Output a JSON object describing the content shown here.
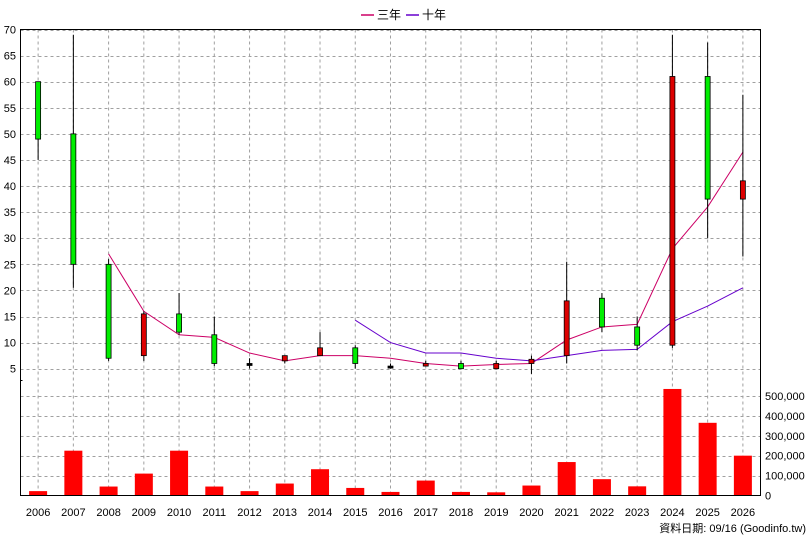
{
  "chart_data": {
    "type": "candlestick",
    "categories": [
      "2006",
      "2007",
      "2008",
      "2009",
      "2010",
      "2011",
      "2012",
      "2013",
      "2014",
      "2015",
      "2016",
      "2017",
      "2018",
      "2019",
      "2020",
      "2021",
      "2022",
      "2023",
      "2024",
      "2025",
      "2026"
    ],
    "price_axis": {
      "ylim": [
        0,
        70
      ],
      "ticks": [
        5,
        10,
        15,
        20,
        25,
        30,
        35,
        40,
        45,
        50,
        55,
        60,
        65,
        70
      ]
    },
    "volume_axis": {
      "ylim": [
        0,
        580000
      ],
      "ticks": [
        0,
        100000,
        200000,
        300000,
        400000,
        500000
      ],
      "tick_labels": [
        "0",
        "100,000",
        "200,000",
        "300,000",
        "400,000",
        "500,000"
      ]
    },
    "candles": [
      {
        "open": 49,
        "close": 60,
        "high": 60,
        "low": 45,
        "color": "green"
      },
      {
        "open": 25,
        "close": 50,
        "high": 69,
        "low": 20.5,
        "color": "green"
      },
      {
        "open": 7,
        "close": 25,
        "high": 26,
        "low": 6.5,
        "color": "green"
      },
      {
        "open": 15.5,
        "close": 7.5,
        "high": 16,
        "low": 6.5,
        "color": "red"
      },
      {
        "open": 12,
        "close": 15.5,
        "high": 19.5,
        "low": 11.5,
        "color": "green"
      },
      {
        "open": 6,
        "close": 11.5,
        "high": 15,
        "low": 5.5,
        "color": "green"
      },
      {
        "open": 6,
        "close": 6,
        "high": 7,
        "low": 5,
        "color": "black"
      },
      {
        "open": 7.5,
        "close": 6.5,
        "high": 7.5,
        "low": 6,
        "color": "red"
      },
      {
        "open": 9,
        "close": 7.5,
        "high": 12,
        "low": 7.5,
        "color": "red"
      },
      {
        "open": 6,
        "close": 9,
        "high": 9.5,
        "low": 5,
        "color": "green"
      },
      {
        "open": 5.5,
        "close": 5.5,
        "high": 6,
        "low": 5,
        "color": "black"
      },
      {
        "open": 6,
        "close": 5.5,
        "high": 6.5,
        "low": 5.5,
        "color": "red"
      },
      {
        "open": 5,
        "close": 6,
        "high": 6.5,
        "low": 5,
        "color": "green"
      },
      {
        "open": 6,
        "close": 5,
        "high": 6.5,
        "low": 5,
        "color": "red"
      },
      {
        "open": 6.8,
        "close": 6,
        "high": 7.5,
        "low": 4,
        "color": "red"
      },
      {
        "open": 18,
        "close": 7.5,
        "high": 25.5,
        "low": 6,
        "color": "red"
      },
      {
        "open": 13,
        "close": 18.5,
        "high": 19.5,
        "low": 12,
        "color": "green"
      },
      {
        "open": 9.5,
        "close": 13,
        "high": 15,
        "low": 8.5,
        "color": "green"
      },
      {
        "open": 61,
        "close": 9.5,
        "high": 69,
        "low": 9,
        "color": "red"
      },
      {
        "open": 37.5,
        "close": 61,
        "high": 67.5,
        "low": 30,
        "color": "green"
      },
      {
        "open": 41,
        "close": 37.5,
        "high": 57.5,
        "low": 26.5,
        "color": "red"
      }
    ],
    "series": [
      {
        "name": "三年",
        "color": "#cc0066",
        "values": [
          null,
          null,
          27,
          16,
          11.5,
          11,
          8,
          6.5,
          7.5,
          7.5,
          7,
          6,
          5.5,
          5.8,
          6,
          10.5,
          13,
          13.5,
          28,
          36,
          46.5
        ]
      },
      {
        "name": "十年",
        "color": "#6600cc",
        "values": [
          null,
          null,
          null,
          null,
          null,
          null,
          null,
          null,
          null,
          14.3,
          10,
          8,
          8,
          7,
          6.5,
          7.5,
          8.5,
          8.7,
          14,
          17,
          20.5
        ]
      }
    ],
    "volume": [
      22000,
      225000,
      45000,
      110000,
      225000,
      45000,
      22000,
      60000,
      132000,
      38000,
      18000,
      75000,
      18000,
      16000,
      50000,
      168000,
      82000,
      46000,
      535000,
      365000,
      200000
    ],
    "legend": [
      "三年",
      "十年"
    ],
    "legend_position": "top-center",
    "grid": true
  },
  "source_label": "資料日期: 09/16  (Goodinfo.tw)"
}
